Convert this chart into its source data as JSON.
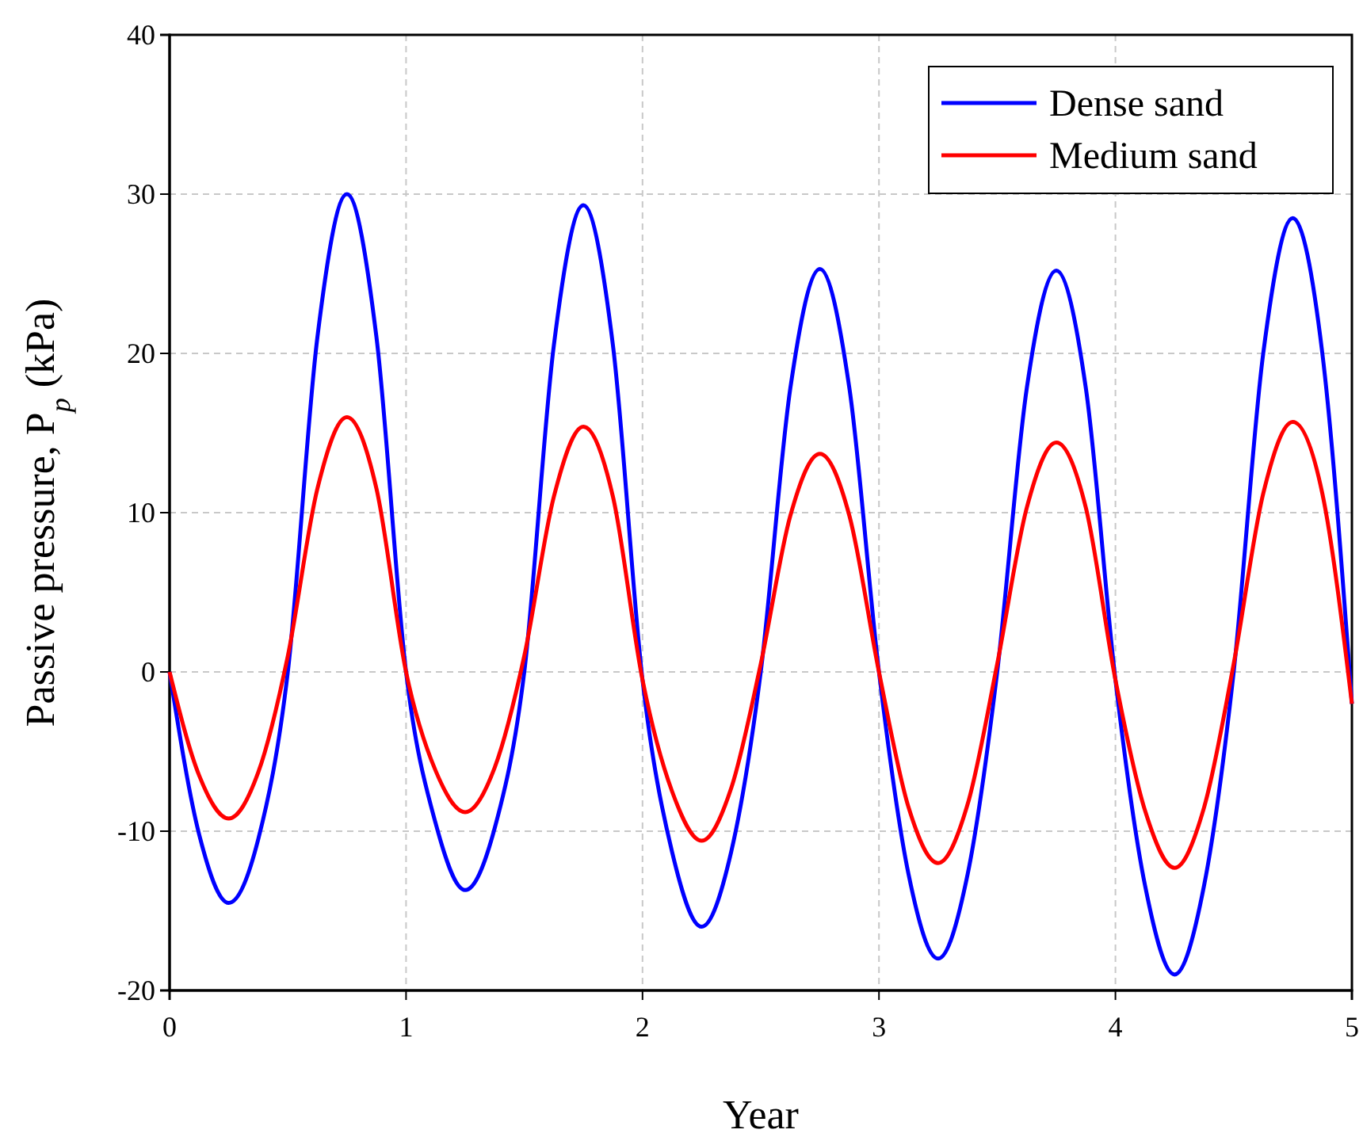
{
  "chart_data": {
    "type": "line",
    "xlabel": "Year",
    "ylabel": "Passive pressure, P$_{p}$ (kPa)",
    "xlim": [
      0,
      5
    ],
    "xticks": [
      0,
      1,
      2,
      3,
      4,
      5
    ],
    "ylim": [
      -20,
      40
    ],
    "yticks": [
      -20,
      -10,
      0,
      10,
      20,
      30,
      40
    ],
    "grid": true,
    "legend": "top right",
    "line_style": "solid",
    "marker": "none",
    "series": [
      {
        "name": "Dense sand",
        "color": "#0000ff",
        "x": [
          0,
          0.125,
          0.25,
          0.375,
          0.5,
          0.625,
          0.75,
          0.875,
          1,
          1.125,
          1.25,
          1.375,
          1.5,
          1.625,
          1.75,
          1.875,
          2,
          2.125,
          2.25,
          2.375,
          2.5,
          2.625,
          2.75,
          2.875,
          3,
          3.125,
          3.25,
          3.375,
          3.5,
          3.625,
          3.75,
          3.875,
          4,
          4.125,
          4.25,
          4.375,
          4.5,
          4.625,
          4.75,
          4.875,
          5
        ],
        "values": [
          0,
          -10.2,
          -14.5,
          -10.5,
          0,
          21,
          30,
          21,
          0,
          -9.5,
          -13.7,
          -9.8,
          0,
          20.5,
          29.3,
          20.5,
          -0.5,
          -11.3,
          -16,
          -11.3,
          0,
          17.8,
          25.3,
          17.8,
          0,
          -12.7,
          -18,
          -12.7,
          0,
          17.8,
          25.2,
          17.8,
          -0.5,
          -13.4,
          -19,
          -13.4,
          0,
          20,
          28.5,
          20,
          -2
        ]
      },
      {
        "name": "Medium sand",
        "color": "#ff0000",
        "x": [
          0,
          0.125,
          0.25,
          0.375,
          0.5,
          0.625,
          0.75,
          0.875,
          1,
          1.125,
          1.25,
          1.375,
          1.5,
          1.625,
          1.75,
          1.875,
          2,
          2.125,
          2.25,
          2.375,
          2.5,
          2.625,
          2.75,
          2.875,
          3,
          3.125,
          3.25,
          3.375,
          3.5,
          3.625,
          3.75,
          3.875,
          4,
          4.125,
          4.25,
          4.375,
          4.5,
          4.625,
          4.75,
          4.875,
          5
        ],
        "values": [
          0,
          -6.5,
          -9.2,
          -6.3,
          1,
          11.5,
          16,
          11.5,
          0,
          -6.2,
          -8.8,
          -6,
          1,
          11,
          15.4,
          11,
          -0.5,
          -7.5,
          -10.6,
          -7.3,
          0.5,
          9.8,
          13.7,
          9.8,
          0,
          -8.5,
          -12,
          -8.3,
          0.5,
          10.3,
          14.4,
          10.3,
          -0.5,
          -8.7,
          -12.3,
          -8.5,
          0.5,
          11.2,
          15.7,
          11.2,
          -2
        ]
      }
    ]
  }
}
